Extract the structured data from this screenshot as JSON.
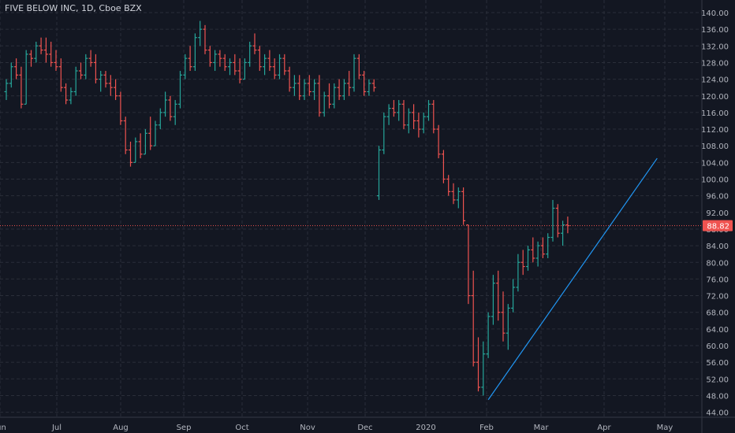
{
  "header": {
    "title": "FIVE BELOW INC, 1D, Cboe BZX"
  },
  "colors": {
    "background": "#131722",
    "grid": "#2a2e39",
    "up": "#26a69a",
    "down": "#ef5350",
    "trendline": "#2196f3",
    "price_line": "#ef5350",
    "axis_text": "#b2b5be"
  },
  "chart_data": {
    "type": "ohlc",
    "symbol": "FIVE BELOW INC",
    "interval": "1D",
    "exchange": "Cboe BZX",
    "ylim": [
      42,
      142
    ],
    "y_ticks": [
      "140.00",
      "136.00",
      "132.00",
      "128.00",
      "124.00",
      "120.00",
      "116.00",
      "112.00",
      "108.00",
      "104.00",
      "100.00",
      "96.00",
      "92.00",
      "88.00",
      "84.00",
      "80.00",
      "76.00",
      "72.00",
      "68.00",
      "64.00",
      "60.00",
      "56.00",
      "52.00",
      "48.00",
      "44.00"
    ],
    "x_ticks": [
      "Jun",
      "Jul",
      "Aug",
      "Sep",
      "Oct",
      "Nov",
      "Dec",
      "2020",
      "Feb",
      "Mar",
      "Apr",
      "May"
    ],
    "last_price": "88.82",
    "grid": true,
    "bars": [
      {
        "i": 0,
        "o": 121,
        "h": 124,
        "l": 119,
        "c": 123
      },
      {
        "i": 1,
        "o": 123,
        "h": 128,
        "l": 122,
        "c": 127
      },
      {
        "i": 2,
        "o": 127,
        "h": 129,
        "l": 124,
        "c": 125
      },
      {
        "i": 3,
        "o": 125,
        "h": 127,
        "l": 117,
        "c": 118
      },
      {
        "i": 4,
        "o": 118,
        "h": 131,
        "l": 118,
        "c": 130
      },
      {
        "i": 5,
        "o": 130,
        "h": 131,
        "l": 127,
        "c": 129
      },
      {
        "i": 6,
        "o": 129,
        "h": 133,
        "l": 128,
        "c": 132
      },
      {
        "i": 7,
        "o": 132,
        "h": 134,
        "l": 130,
        "c": 131
      },
      {
        "i": 8,
        "o": 131,
        "h": 134,
        "l": 128,
        "c": 130
      },
      {
        "i": 9,
        "o": 130,
        "h": 133,
        "l": 127,
        "c": 128
      },
      {
        "i": 10,
        "o": 128,
        "h": 131,
        "l": 126,
        "c": 127
      },
      {
        "i": 11,
        "o": 127,
        "h": 129,
        "l": 121,
        "c": 122
      },
      {
        "i": 12,
        "o": 122,
        "h": 123,
        "l": 118,
        "c": 119
      },
      {
        "i": 13,
        "o": 119,
        "h": 122,
        "l": 118,
        "c": 121
      },
      {
        "i": 14,
        "o": 121,
        "h": 127,
        "l": 120,
        "c": 126
      },
      {
        "i": 15,
        "o": 126,
        "h": 128,
        "l": 124,
        "c": 125
      },
      {
        "i": 16,
        "o": 125,
        "h": 130,
        "l": 124,
        "c": 129
      },
      {
        "i": 17,
        "o": 129,
        "h": 131,
        "l": 127,
        "c": 128
      },
      {
        "i": 18,
        "o": 128,
        "h": 130,
        "l": 123,
        "c": 124
      },
      {
        "i": 19,
        "o": 124,
        "h": 126,
        "l": 121,
        "c": 125
      },
      {
        "i": 20,
        "o": 125,
        "h": 126,
        "l": 122,
        "c": 123
      },
      {
        "i": 21,
        "o": 123,
        "h": 125,
        "l": 120,
        "c": 122
      },
      {
        "i": 22,
        "o": 122,
        "h": 124,
        "l": 119,
        "c": 120
      },
      {
        "i": 23,
        "o": 120,
        "h": 121,
        "l": 113,
        "c": 114
      },
      {
        "i": 24,
        "o": 114,
        "h": 115,
        "l": 106,
        "c": 107
      },
      {
        "i": 25,
        "o": 107,
        "h": 109,
        "l": 103,
        "c": 104
      },
      {
        "i": 26,
        "o": 104,
        "h": 110,
        "l": 104,
        "c": 109
      },
      {
        "i": 27,
        "o": 109,
        "h": 111,
        "l": 105,
        "c": 106
      },
      {
        "i": 28,
        "o": 106,
        "h": 112,
        "l": 106,
        "c": 111
      },
      {
        "i": 29,
        "o": 111,
        "h": 115,
        "l": 107,
        "c": 108
      },
      {
        "i": 30,
        "o": 108,
        "h": 114,
        "l": 108,
        "c": 113
      },
      {
        "i": 31,
        "o": 113,
        "h": 117,
        "l": 112,
        "c": 116
      },
      {
        "i": 32,
        "o": 116,
        "h": 121,
        "l": 115,
        "c": 119
      },
      {
        "i": 33,
        "o": 119,
        "h": 120,
        "l": 114,
        "c": 115
      },
      {
        "i": 34,
        "o": 115,
        "h": 119,
        "l": 113,
        "c": 118
      },
      {
        "i": 35,
        "o": 118,
        "h": 126,
        "l": 117,
        "c": 125
      },
      {
        "i": 36,
        "o": 125,
        "h": 130,
        "l": 124,
        "c": 129
      },
      {
        "i": 37,
        "o": 129,
        "h": 132,
        "l": 126,
        "c": 127
      },
      {
        "i": 38,
        "o": 127,
        "h": 135,
        "l": 126,
        "c": 134
      },
      {
        "i": 39,
        "o": 134,
        "h": 138,
        "l": 132,
        "c": 136
      },
      {
        "i": 40,
        "o": 136,
        "h": 137,
        "l": 130,
        "c": 131
      },
      {
        "i": 41,
        "o": 131,
        "h": 132,
        "l": 127,
        "c": 128
      },
      {
        "i": 42,
        "o": 128,
        "h": 131,
        "l": 126,
        "c": 130
      },
      {
        "i": 43,
        "o": 130,
        "h": 131,
        "l": 127,
        "c": 129
      },
      {
        "i": 44,
        "o": 129,
        "h": 130,
        "l": 126,
        "c": 127
      },
      {
        "i": 45,
        "o": 127,
        "h": 129,
        "l": 125,
        "c": 128
      },
      {
        "i": 46,
        "o": 128,
        "h": 130,
        "l": 125,
        "c": 126
      },
      {
        "i": 47,
        "o": 126,
        "h": 129,
        "l": 123,
        "c": 124
      },
      {
        "i": 48,
        "o": 124,
        "h": 129,
        "l": 124,
        "c": 128
      },
      {
        "i": 49,
        "o": 128,
        "h": 133,
        "l": 127,
        "c": 132
      },
      {
        "i": 50,
        "o": 132,
        "h": 135,
        "l": 130,
        "c": 131
      },
      {
        "i": 51,
        "o": 131,
        "h": 132,
        "l": 126,
        "c": 127
      },
      {
        "i": 52,
        "o": 127,
        "h": 130,
        "l": 125,
        "c": 129
      },
      {
        "i": 53,
        "o": 129,
        "h": 131,
        "l": 126,
        "c": 127
      },
      {
        "i": 54,
        "o": 127,
        "h": 129,
        "l": 124,
        "c": 125
      },
      {
        "i": 55,
        "o": 125,
        "h": 130,
        "l": 124,
        "c": 129
      },
      {
        "i": 56,
        "o": 129,
        "h": 130,
        "l": 125,
        "c": 126
      },
      {
        "i": 57,
        "o": 126,
        "h": 127,
        "l": 121,
        "c": 122
      },
      {
        "i": 58,
        "o": 122,
        "h": 125,
        "l": 120,
        "c": 123
      },
      {
        "i": 59,
        "o": 123,
        "h": 125,
        "l": 119,
        "c": 120
      },
      {
        "i": 60,
        "o": 120,
        "h": 124,
        "l": 119,
        "c": 123
      },
      {
        "i": 61,
        "o": 123,
        "h": 125,
        "l": 120,
        "c": 121
      },
      {
        "i": 62,
        "o": 121,
        "h": 124,
        "l": 119,
        "c": 123
      },
      {
        "i": 63,
        "o": 123,
        "h": 125,
        "l": 115,
        "c": 116
      },
      {
        "i": 64,
        "o": 116,
        "h": 121,
        "l": 115,
        "c": 120
      },
      {
        "i": 65,
        "o": 120,
        "h": 123,
        "l": 117,
        "c": 118
      },
      {
        "i": 66,
        "o": 118,
        "h": 123,
        "l": 117,
        "c": 122
      },
      {
        "i": 67,
        "o": 122,
        "h": 124,
        "l": 119,
        "c": 120
      },
      {
        "i": 68,
        "o": 120,
        "h": 124,
        "l": 119,
        "c": 123
      },
      {
        "i": 69,
        "o": 123,
        "h": 126,
        "l": 120,
        "c": 122
      },
      {
        "i": 70,
        "o": 122,
        "h": 130,
        "l": 121,
        "c": 129
      },
      {
        "i": 71,
        "o": 129,
        "h": 130,
        "l": 124,
        "c": 125
      },
      {
        "i": 72,
        "o": 125,
        "h": 126,
        "l": 120,
        "c": 121
      },
      {
        "i": 73,
        "o": 121,
        "h": 124,
        "l": 120,
        "c": 123
      },
      {
        "i": 74,
        "o": 123,
        "h": 124,
        "l": 121,
        "c": 122
      },
      {
        "i": 75,
        "o": 96,
        "h": 108,
        "l": 95,
        "c": 107
      },
      {
        "i": 76,
        "o": 107,
        "h": 116,
        "l": 106,
        "c": 115
      },
      {
        "i": 77,
        "o": 115,
        "h": 118,
        "l": 113,
        "c": 117
      },
      {
        "i": 78,
        "o": 117,
        "h": 119,
        "l": 115,
        "c": 116
      },
      {
        "i": 79,
        "o": 116,
        "h": 119,
        "l": 114,
        "c": 118
      },
      {
        "i": 80,
        "o": 118,
        "h": 119,
        "l": 112,
        "c": 113
      },
      {
        "i": 81,
        "o": 113,
        "h": 117,
        "l": 111,
        "c": 116
      },
      {
        "i": 82,
        "o": 116,
        "h": 118,
        "l": 112,
        "c": 114
      },
      {
        "i": 83,
        "o": 114,
        "h": 116,
        "l": 110,
        "c": 112
      },
      {
        "i": 84,
        "o": 112,
        "h": 116,
        "l": 111,
        "c": 115
      },
      {
        "i": 85,
        "o": 115,
        "h": 119,
        "l": 114,
        "c": 118
      },
      {
        "i": 86,
        "o": 118,
        "h": 119,
        "l": 111,
        "c": 112
      },
      {
        "i": 87,
        "o": 112,
        "h": 113,
        "l": 105,
        "c": 106
      },
      {
        "i": 88,
        "o": 106,
        "h": 107,
        "l": 99,
        "c": 100
      },
      {
        "i": 89,
        "o": 100,
        "h": 101,
        "l": 96,
        "c": 97
      },
      {
        "i": 90,
        "o": 97,
        "h": 99,
        "l": 94,
        "c": 95
      },
      {
        "i": 91,
        "o": 95,
        "h": 98,
        "l": 93,
        "c": 97
      },
      {
        "i": 92,
        "o": 97,
        "h": 98,
        "l": 89,
        "c": 90
      },
      {
        "i": 93,
        "o": 89,
        "h": 89,
        "l": 70,
        "c": 72
      },
      {
        "i": 94,
        "o": 72,
        "h": 78,
        "l": 55,
        "c": 56
      },
      {
        "i": 95,
        "o": 56,
        "h": 62,
        "l": 49,
        "c": 50
      },
      {
        "i": 96,
        "o": 50,
        "h": 61,
        "l": 48,
        "c": 58
      },
      {
        "i": 97,
        "o": 58,
        "h": 68,
        "l": 57,
        "c": 67
      },
      {
        "i": 98,
        "o": 67,
        "h": 77,
        "l": 65,
        "c": 75
      },
      {
        "i": 99,
        "o": 75,
        "h": 78,
        "l": 66,
        "c": 68
      },
      {
        "i": 100,
        "o": 68,
        "h": 73,
        "l": 61,
        "c": 63
      },
      {
        "i": 101,
        "o": 63,
        "h": 70,
        "l": 59,
        "c": 69
      },
      {
        "i": 102,
        "o": 69,
        "h": 76,
        "l": 68,
        "c": 74
      },
      {
        "i": 103,
        "o": 74,
        "h": 82,
        "l": 73,
        "c": 80
      },
      {
        "i": 104,
        "o": 80,
        "h": 83,
        "l": 77,
        "c": 79
      },
      {
        "i": 105,
        "o": 79,
        "h": 84,
        "l": 78,
        "c": 83
      },
      {
        "i": 106,
        "o": 83,
        "h": 86,
        "l": 80,
        "c": 81
      },
      {
        "i": 107,
        "o": 81,
        "h": 85,
        "l": 79,
        "c": 84
      },
      {
        "i": 108,
        "o": 84,
        "h": 86,
        "l": 81,
        "c": 82
      },
      {
        "i": 109,
        "o": 82,
        "h": 87,
        "l": 81,
        "c": 86
      },
      {
        "i": 110,
        "o": 86,
        "h": 95,
        "l": 85,
        "c": 93
      },
      {
        "i": 111,
        "o": 93,
        "h": 94,
        "l": 86,
        "c": 87
      },
      {
        "i": 112,
        "o": 87,
        "h": 90,
        "l": 84,
        "c": 89
      },
      {
        "i": 113,
        "o": 89,
        "h": 91,
        "l": 87,
        "c": 88.82
      }
    ],
    "trendline": {
      "from": {
        "i": 97,
        "y": 47
      },
      "to": {
        "i": 131,
        "y": 105
      }
    }
  }
}
